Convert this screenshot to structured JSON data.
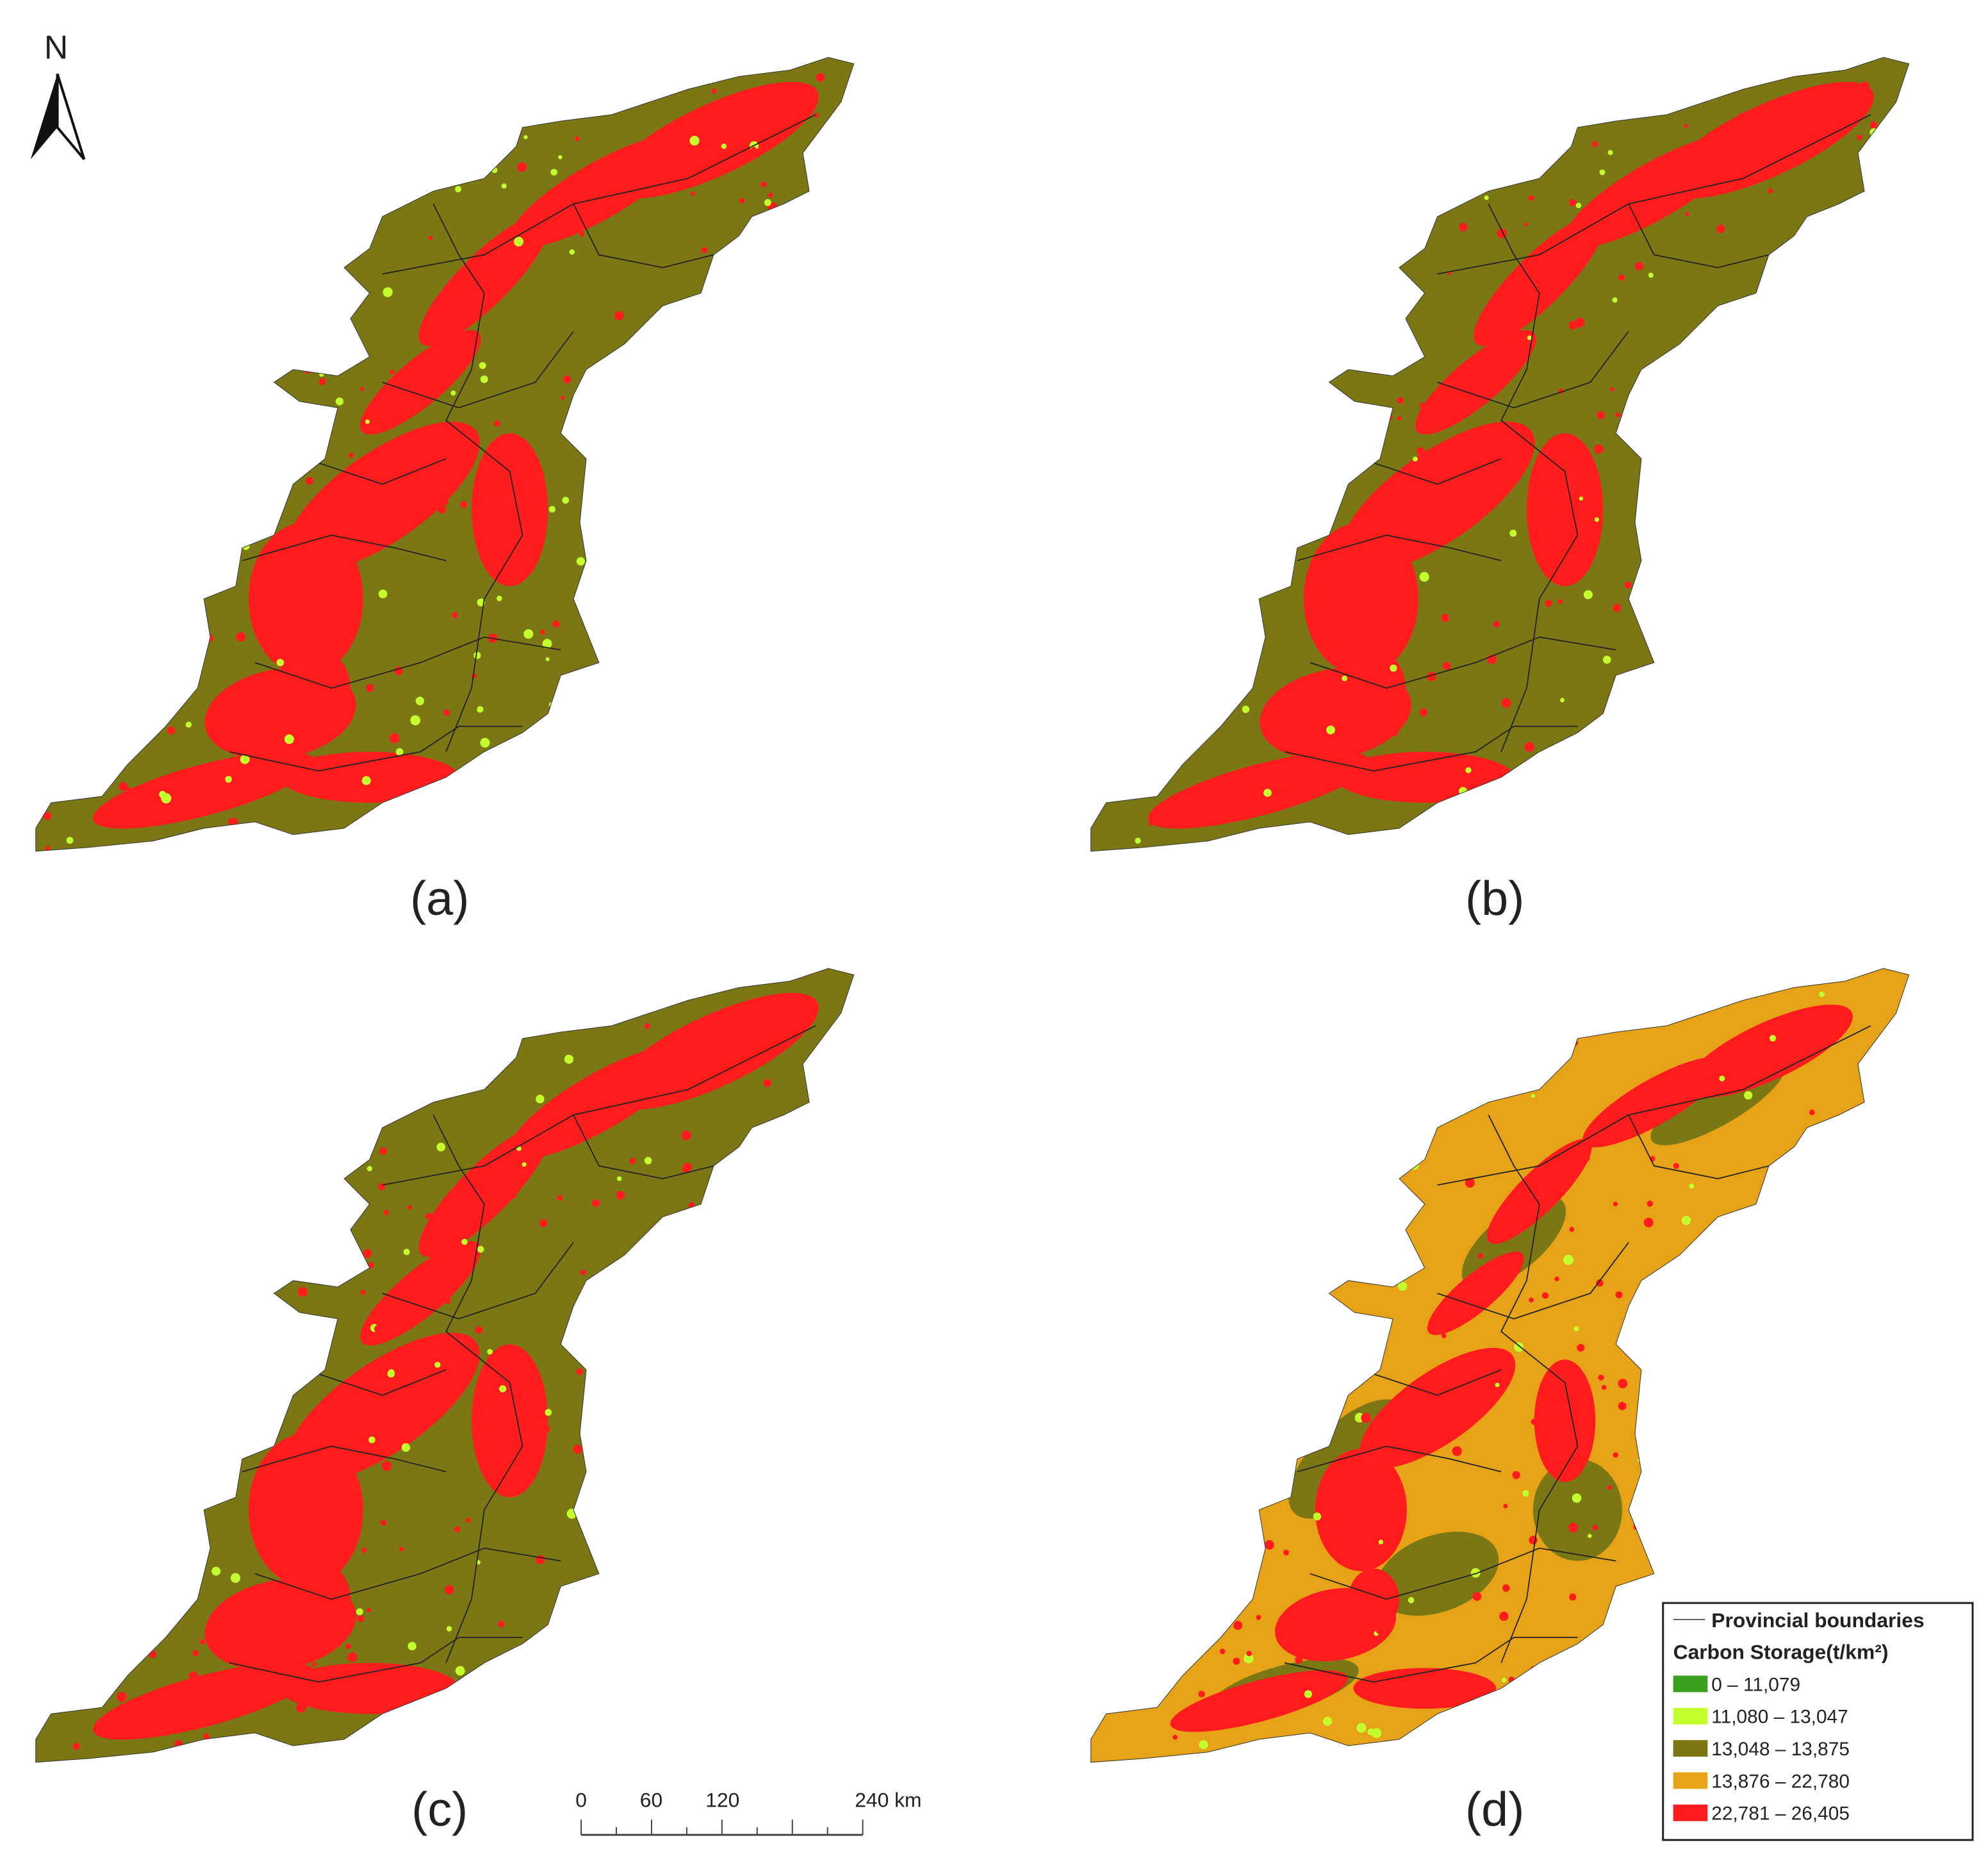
{
  "north_arrow": "N",
  "panels": [
    {
      "label": "(a)"
    },
    {
      "label": "(b)"
    },
    {
      "label": "(c)"
    },
    {
      "label": "(d)"
    }
  ],
  "scale_bar": {
    "labels": [
      "0",
      "60",
      "120",
      "240 km"
    ]
  },
  "legend": {
    "boundary_label": "Provincial boundaries",
    "title": "Carbon Storage(t/km²)",
    "items": [
      {
        "label": "0 – 11,079",
        "color": "#3aa021"
      },
      {
        "label": "11,080 – 13,047",
        "color": "#c4ff2e"
      },
      {
        "label": "13,048 – 13,875",
        "color": "#7b7714"
      },
      {
        "label": "13,876 – 22,780",
        "color": "#e6a317"
      },
      {
        "label": "22,781 – 26,405",
        "color": "#ff1c1c"
      }
    ]
  }
}
